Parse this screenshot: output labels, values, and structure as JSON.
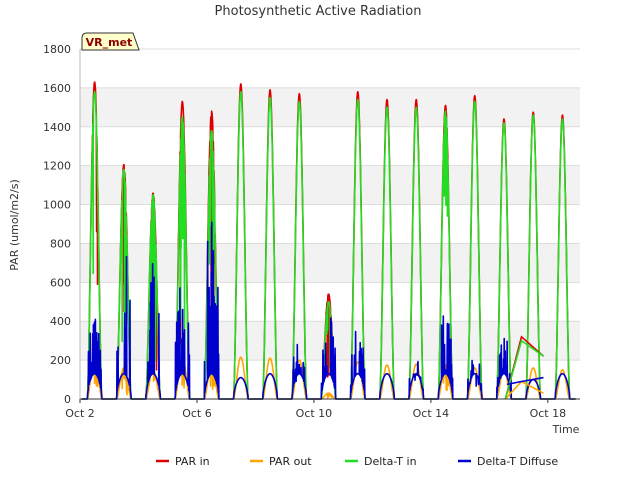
{
  "chart_data": {
    "type": "line",
    "title": "Photosynthetic Active Radiation",
    "xlabel": "Time",
    "ylabel": "PAR (umol/m2/s)",
    "badge": "VR_met",
    "ylim": [
      0,
      1800
    ],
    "yticks": [
      0,
      200,
      400,
      600,
      800,
      1000,
      1200,
      1400,
      1600,
      1800
    ],
    "xlim": [
      2.0,
      19.1
    ],
    "xticks": [
      {
        "value": 2,
        "label": "Oct 2"
      },
      {
        "value": 6,
        "label": "Oct 6"
      },
      {
        "value": 10,
        "label": "Oct 10"
      },
      {
        "value": 14,
        "label": "Oct 14"
      },
      {
        "value": 18,
        "label": "Oct 18"
      }
    ],
    "grid": true,
    "legend_position": "bottom-center",
    "days": [
      {
        "day": 2,
        "peak_in": 1630,
        "peak_out": 215,
        "peak_dt": 1580,
        "peak_diff": 420
      },
      {
        "day": 3,
        "peak_in": 1205,
        "peak_out": 160,
        "peak_dt": 1180,
        "peak_diff": 820
      },
      {
        "day": 4,
        "peak_in": 1060,
        "peak_out": 150,
        "peak_dt": 1050,
        "peak_diff": 700
      },
      {
        "day": 5,
        "peak_in": 1530,
        "peak_out": 220,
        "peak_dt": 1450,
        "peak_diff": 660
      },
      {
        "day": 6,
        "peak_in": 1480,
        "peak_out": 170,
        "peak_dt": 1380,
        "peak_diff": 940
      },
      {
        "day": 7,
        "peak_in": 1620,
        "peak_out": 215,
        "peak_dt": 1580,
        "peak_diff": 110
      },
      {
        "day": 8,
        "peak_in": 1590,
        "peak_out": 210,
        "peak_dt": 1550,
        "peak_diff": 130
      },
      {
        "day": 9,
        "peak_in": 1570,
        "peak_out": 200,
        "peak_dt": 1530,
        "peak_diff": 305
      },
      {
        "day": 10,
        "peak_in": 540,
        "peak_out": 30,
        "peak_dt": 500,
        "peak_diff": 470
      },
      {
        "day": 11,
        "peak_in": 1580,
        "peak_out": 190,
        "peak_dt": 1540,
        "peak_diff": 370
      },
      {
        "day": 12,
        "peak_in": 1540,
        "peak_out": 175,
        "peak_dt": 1500,
        "peak_diff": 170
      },
      {
        "day": 13,
        "peak_in": 1540,
        "peak_out": 180,
        "peak_dt": 1500,
        "peak_diff": 210
      },
      {
        "day": 14,
        "peak_in": 1510,
        "peak_out": 175,
        "peak_dt": 1480,
        "peak_diff": 490
      },
      {
        "day": 15,
        "peak_in": 1560,
        "peak_out": 160,
        "peak_dt": 1530,
        "peak_diff": 220
      },
      {
        "day": 16,
        "peak_in": 1440,
        "peak_out": 150,
        "peak_dt": 1420,
        "peak_diff": 350
      },
      {
        "day": 17,
        "peak_in": 1475,
        "peak_out": 160,
        "peak_dt": 1460,
        "peak_diff": 100
      },
      {
        "day": 18,
        "peak_in": 1460,
        "peak_out": 150,
        "peak_dt": 1440,
        "peak_diff": 155
      }
    ],
    "gap_segments": [
      {
        "series": "PAR in",
        "points": [
          [
            16.55,
            0
          ],
          [
            17.1,
            320
          ],
          [
            17.85,
            220
          ]
        ]
      },
      {
        "series": "PAR out",
        "points": [
          [
            16.55,
            0
          ],
          [
            17.1,
            90
          ],
          [
            17.85,
            30
          ]
        ]
      },
      {
        "series": "Delta-T in",
        "points": [
          [
            16.55,
            0
          ],
          [
            17.1,
            300
          ],
          [
            17.85,
            220
          ]
        ]
      },
      {
        "series": "Delta-T Diffuse",
        "points": [
          [
            16.6,
            75
          ],
          [
            17.1,
            90
          ],
          [
            17.85,
            110
          ]
        ]
      }
    ],
    "series": [
      {
        "name": "PAR in",
        "color": "#dd0000"
      },
      {
        "name": "PAR out",
        "color": "#ffa500"
      },
      {
        "name": "Delta-T in",
        "color": "#22dd22"
      },
      {
        "name": "Delta-T Diffuse",
        "color": "#0000cc"
      }
    ]
  }
}
